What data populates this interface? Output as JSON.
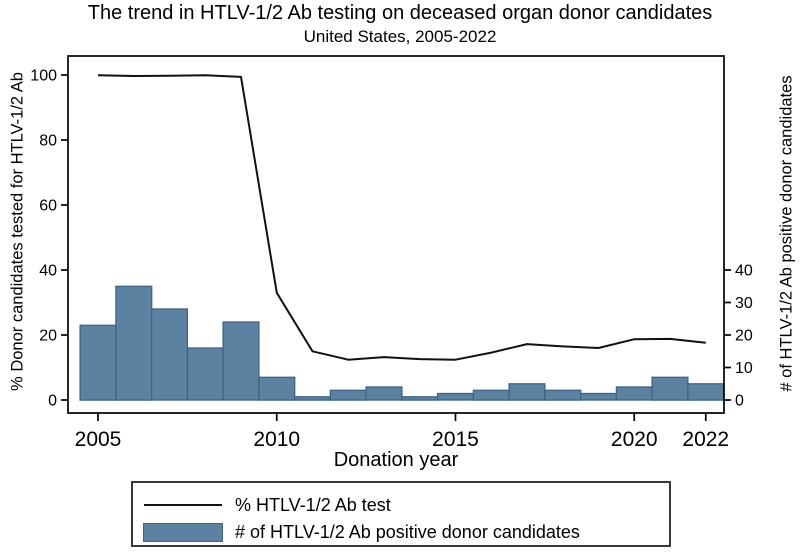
{
  "title": "The trend in HTLV-1/2 Ab testing on deceased organ donor candidates",
  "subtitle": "United States, 2005-2022",
  "axes": {
    "x_label": "Donation year",
    "left_label": "% Donor candidates tested for HTLV-1/2 Ab",
    "right_label": "# of HTLV-1/2 Ab positive donor candidates"
  },
  "legend": {
    "line_label": "% HTLV-1/2 Ab test",
    "bar_label": "# of HTLV-1/2 Ab positive donor candidates"
  },
  "colors": {
    "bar_fill": "#5d81a0",
    "bar_border": "#3e6383",
    "line": "#111111",
    "frame": "#000000",
    "text": "#000000"
  },
  "chart_data": {
    "type": "bar",
    "title": "The trend in HTLV-1/2 Ab testing on deceased organ donor candidates",
    "subtitle": "United States, 2005-2022",
    "xlabel": "Donation year",
    "x": [
      2005,
      2006,
      2007,
      2008,
      2009,
      2010,
      2011,
      2012,
      2013,
      2014,
      2015,
      2016,
      2017,
      2018,
      2019,
      2020,
      2021,
      2022
    ],
    "x_ticks": [
      2005,
      2010,
      2015,
      2020,
      2022
    ],
    "left_axis": {
      "label": "% Donor candidates tested for HTLV-1/2 Ab",
      "ticks": [
        0,
        20,
        40,
        60,
        80,
        100
      ],
      "range": [
        -4,
        106
      ]
    },
    "right_axis": {
      "label": "# of HTLV-1/2 Ab positive donor candidates",
      "ticks": [
        0,
        10,
        20,
        30,
        40
      ],
      "range": [
        -4,
        106
      ]
    },
    "grid": false,
    "legend_position": "bottom",
    "series": [
      {
        "name": "% HTLV-1/2 Ab test",
        "kind": "line",
        "axis": "left",
        "values": [
          99.9,
          99.7,
          99.8,
          99.9,
          99.4,
          33,
          15,
          12.4,
          13.2,
          12.6,
          12.4,
          14.6,
          17.2,
          16.5,
          16,
          18.7,
          18.8,
          17.6
        ]
      },
      {
        "name": "# of HTLV-1/2 Ab positive donor candidates",
        "kind": "bar",
        "axis": "right",
        "values": [
          23,
          35,
          28,
          16,
          24,
          7,
          1,
          3,
          4,
          1,
          2,
          3,
          5,
          3,
          2,
          4,
          7,
          5
        ]
      }
    ]
  }
}
